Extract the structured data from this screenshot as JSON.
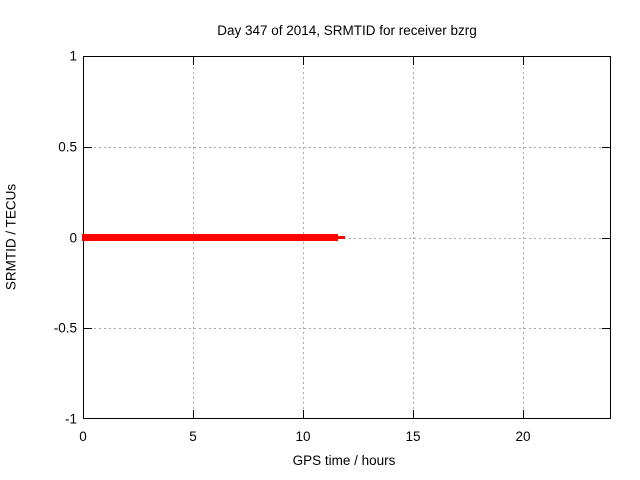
{
  "chart_data": {
    "type": "line",
    "title": "Day 347 of 2014, SRMTID for receiver bzrg",
    "xlabel": "GPS time / hours",
    "ylabel": "SRMTID / TECUs",
    "xlim": [
      0,
      24
    ],
    "ylim": [
      -1,
      1
    ],
    "xticks": [
      0,
      5,
      10,
      15,
      20
    ],
    "yticks": [
      1,
      0.5,
      0,
      -0.5,
      -1
    ],
    "grid": true,
    "grid_style": "dotted",
    "legend": false,
    "series": [
      {
        "name": "SRMTID",
        "color": "#ff0000",
        "y_value": 0,
        "x_start": 0,
        "x_end": 11.9,
        "segments": [
          {
            "x0": 0,
            "x1": 11.55,
            "y": 0,
            "thickness_px": 7
          },
          {
            "x0": 11.55,
            "x1": 11.86,
            "y": 0,
            "thickness_px": 3
          }
        ]
      }
    ],
    "colors": {
      "line": "#ff0000",
      "grid": "#a9a9a9",
      "border": "#000000",
      "text": "#000000",
      "background": "#ffffff"
    }
  }
}
